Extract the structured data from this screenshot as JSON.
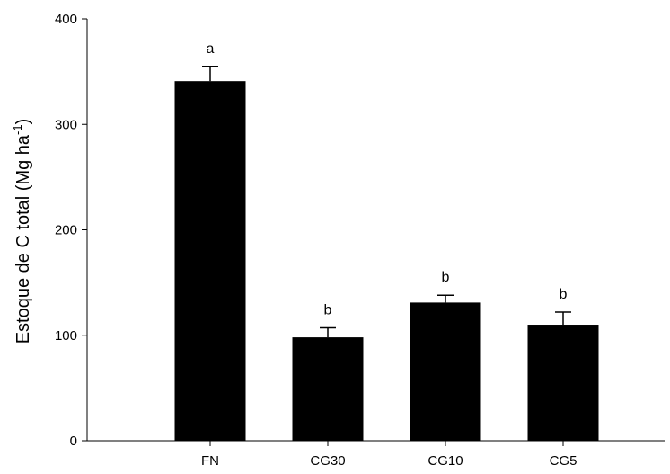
{
  "chart_data": {
    "type": "bar",
    "categories": [
      "FN",
      "CG30",
      "CG10",
      "CG5"
    ],
    "values": [
      341,
      98,
      131,
      110
    ],
    "errors": [
      14,
      9,
      7,
      12
    ],
    "significance_letters": [
      "a",
      "b",
      "b",
      "b"
    ],
    "ylabel": "Estoque de C total (Mg ha",
    "ylabel_superscript": "-1",
    "ylabel_suffix": ")",
    "ylim": [
      0,
      400
    ],
    "yticks": [
      0,
      100,
      200,
      300,
      400
    ],
    "grid": false,
    "bar_color": "#000000"
  }
}
